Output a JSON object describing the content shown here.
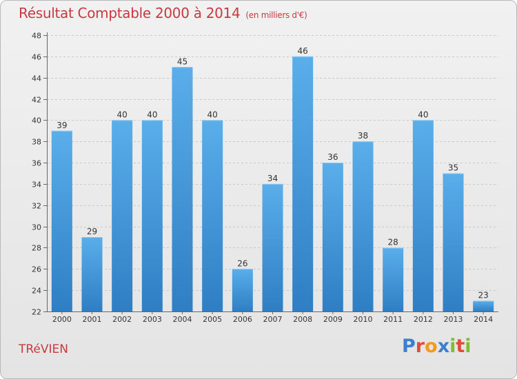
{
  "chart_data": {
    "type": "bar",
    "title": "Résultat Comptable 2000 à 2014",
    "subtitle": "(en milliers d'€)",
    "xlabel": "",
    "ylabel": "",
    "categories": [
      "2000",
      "2001",
      "2002",
      "2003",
      "2004",
      "2005",
      "2006",
      "2007",
      "2008",
      "2009",
      "2010",
      "2011",
      "2012",
      "2013",
      "2014"
    ],
    "values": [
      39,
      29,
      40,
      40,
      45,
      40,
      26,
      34,
      46,
      36,
      38,
      28,
      40,
      35,
      23
    ],
    "ylim": [
      22,
      48
    ],
    "yticks": [
      "22",
      "24",
      "26",
      "28",
      "30",
      "32",
      "34",
      "36",
      "38",
      "40",
      "42",
      "44",
      "46",
      "48"
    ],
    "grid": true,
    "bar_color": "#4a9fdf"
  },
  "commune": "TRéVIEN",
  "logo": {
    "letters": [
      {
        "char": "P",
        "color": "#3a7fd0"
      },
      {
        "char": "r",
        "color": "#e14b3a"
      },
      {
        "char": "o",
        "color": "#f29a1c"
      },
      {
        "char": "x",
        "color": "#3a7fd0"
      },
      {
        "char": "i",
        "color": "#7bbf2a"
      },
      {
        "char": "t",
        "color": "#e14b3a"
      },
      {
        "char": "i",
        "color": "#7bbf2a"
      }
    ]
  }
}
